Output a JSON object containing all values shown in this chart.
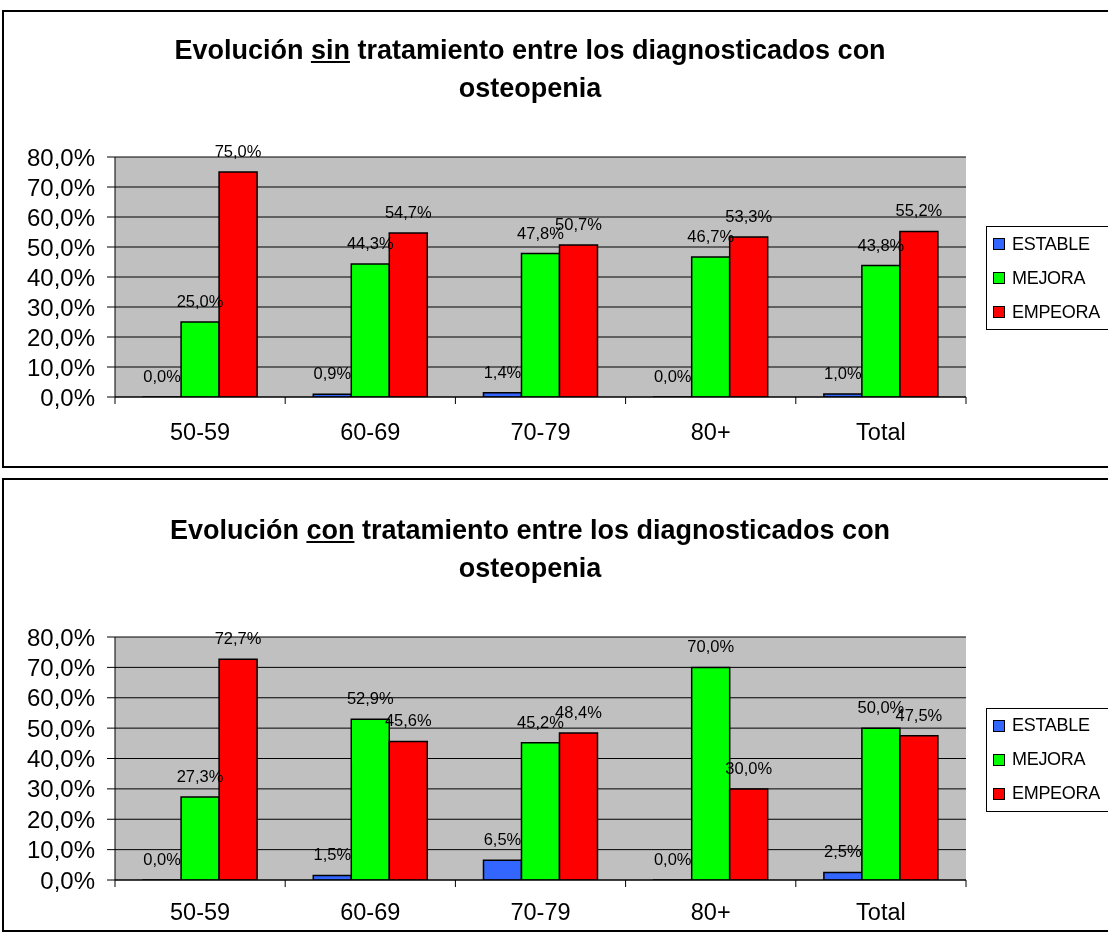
{
  "chart_data": [
    {
      "type": "bar",
      "title": "Evolución sin tratamiento entre los diagnosticados con osteopenia",
      "categories": [
        "50-59",
        "60-69",
        "70-79",
        "80+",
        "Total"
      ],
      "series": [
        {
          "name": "ESTABLE",
          "color": "#3366ff",
          "values": [
            0,
            0.9,
            1.4,
            0,
            1.0
          ],
          "value_labels": [
            "0,0%",
            "0,9%",
            "1,4%",
            "0,0%",
            "1,0%"
          ]
        },
        {
          "name": "MEJORA",
          "color": "#00ff00",
          "values": [
            25.0,
            44.3,
            47.8,
            46.7,
            43.8
          ],
          "value_labels": [
            "25,0%",
            "44,3%",
            "47,8%",
            "46,7%",
            "43,8%"
          ]
        },
        {
          "name": "EMPEORA",
          "color": "#ff0000",
          "values": [
            75.0,
            54.7,
            50.7,
            53.3,
            55.2
          ],
          "value_labels": [
            "75,0%",
            "54,7%",
            "50,7%",
            "53,3%",
            "55,2%"
          ]
        }
      ],
      "ylim": [
        0,
        80
      ],
      "yticks": [
        {
          "value": 0,
          "label": "0,0%"
        },
        {
          "value": 10,
          "label": "10,0%"
        },
        {
          "value": 20,
          "label": "20,0%"
        },
        {
          "value": 30,
          "label": "30,0%"
        },
        {
          "value": 40,
          "label": "40,0%"
        },
        {
          "value": 50,
          "label": "50,0%"
        },
        {
          "value": 60,
          "label": "60,0%"
        },
        {
          "value": 70,
          "label": "70,0%"
        },
        {
          "value": 80,
          "label": "80,0%"
        }
      ],
      "grid": "y",
      "legend": "right"
    },
    {
      "type": "bar",
      "title": "Evolución con tratamiento entre los diagnosticados con osteopenia",
      "categories": [
        "50-59",
        "60-69",
        "70-79",
        "80+",
        "Total"
      ],
      "series": [
        {
          "name": "ESTABLE",
          "color": "#3366ff",
          "values": [
            0,
            1.5,
            6.5,
            0,
            2.5
          ],
          "value_labels": [
            "0,0%",
            "1,5%",
            "6,5%",
            "0,0%",
            "2,5%"
          ]
        },
        {
          "name": "MEJORA",
          "color": "#00ff00",
          "values": [
            27.3,
            52.9,
            45.2,
            70.0,
            50.0
          ],
          "value_labels": [
            "27,3%",
            "52,9%",
            "45,2%",
            "70,0%",
            "50,0%"
          ]
        },
        {
          "name": "EMPEORA",
          "color": "#ff0000",
          "values": [
            72.7,
            45.6,
            48.4,
            30.0,
            47.5
          ],
          "value_labels": [
            "72,7%",
            "45,6%",
            "48,4%",
            "30,0%",
            "47,5%"
          ]
        }
      ],
      "ylim": [
        0,
        80
      ],
      "yticks": [
        {
          "value": 0,
          "label": "0,0%"
        },
        {
          "value": 10,
          "label": "10,0%"
        },
        {
          "value": 20,
          "label": "20,0%"
        },
        {
          "value": 30,
          "label": "30,0%"
        },
        {
          "value": 40,
          "label": "40,0%"
        },
        {
          "value": 50,
          "label": "50,0%"
        },
        {
          "value": 60,
          "label": "60,0%"
        },
        {
          "value": 70,
          "label": "70,0%"
        },
        {
          "value": 80,
          "label": "80,0%"
        }
      ],
      "grid": "y",
      "legend": "right"
    }
  ]
}
